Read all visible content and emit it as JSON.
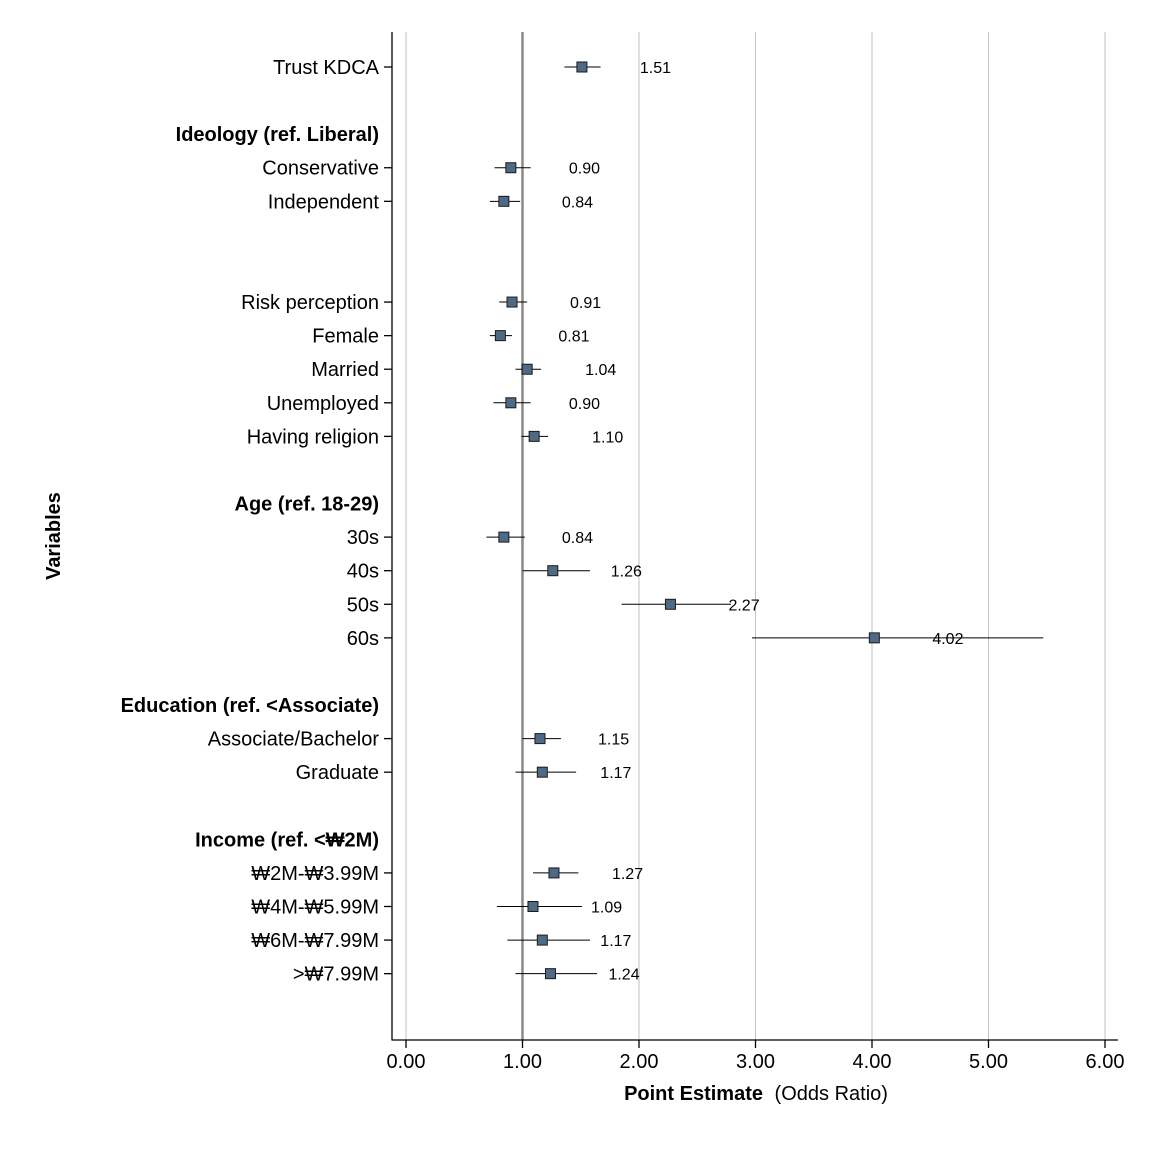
{
  "chart_data": {
    "type": "forest",
    "xlabel_bold": "Point Estimate",
    "xlabel_rest": "(Odds Ratio)",
    "ylabel": "Variables",
    "xlim": [
      0,
      6
    ],
    "xticks": [
      "0.00",
      "1.00",
      "2.00",
      "3.00",
      "4.00",
      "5.00",
      "6.00"
    ],
    "xtick_values": [
      0,
      1,
      2,
      3,
      4,
      5,
      6
    ],
    "reference_line": 1,
    "grid": "vertical",
    "marker_color": "#4f6a85",
    "rows": [
      {
        "kind": "item",
        "label": "Trust KDCA",
        "estimate": 1.51,
        "lower": 1.36,
        "upper": 1.67,
        "value_label": "1.51"
      },
      {
        "kind": "blank"
      },
      {
        "kind": "group",
        "label": "Ideology (ref. Liberal)"
      },
      {
        "kind": "item",
        "label": "Conservative",
        "estimate": 0.9,
        "lower": 0.76,
        "upper": 1.07,
        "value_label": "0.90"
      },
      {
        "kind": "item",
        "label": "Independent",
        "estimate": 0.84,
        "lower": 0.72,
        "upper": 0.98,
        "value_label": "0.84"
      },
      {
        "kind": "blank"
      },
      {
        "kind": "blank"
      },
      {
        "kind": "item",
        "label": "Risk perception",
        "estimate": 0.91,
        "lower": 0.8,
        "upper": 1.04,
        "value_label": "0.91"
      },
      {
        "kind": "item",
        "label": "Female",
        "estimate": 0.81,
        "lower": 0.72,
        "upper": 0.91,
        "value_label": "0.81"
      },
      {
        "kind": "item",
        "label": "Married",
        "estimate": 1.04,
        "lower": 0.94,
        "upper": 1.16,
        "value_label": "1.04"
      },
      {
        "kind": "item",
        "label": "Unemployed",
        "estimate": 0.9,
        "lower": 0.75,
        "upper": 1.07,
        "value_label": "0.90"
      },
      {
        "kind": "item",
        "label": "Having religion",
        "estimate": 1.1,
        "lower": 0.99,
        "upper": 1.22,
        "value_label": "1.10"
      },
      {
        "kind": "blank"
      },
      {
        "kind": "group",
        "label": "Age (ref. 18-29)"
      },
      {
        "kind": "item",
        "label": "30s",
        "estimate": 0.84,
        "lower": 0.69,
        "upper": 1.02,
        "value_label": "0.84"
      },
      {
        "kind": "item",
        "label": "40s",
        "estimate": 1.26,
        "lower": 1.0,
        "upper": 1.58,
        "value_label": "1.26"
      },
      {
        "kind": "item",
        "label": "50s",
        "estimate": 2.27,
        "lower": 1.85,
        "upper": 2.79,
        "value_label": "2.27"
      },
      {
        "kind": "item",
        "label": "60s",
        "estimate": 4.02,
        "lower": 2.97,
        "upper": 5.47,
        "value_label": "4.02"
      },
      {
        "kind": "blank"
      },
      {
        "kind": "group",
        "label": "Education (ref. <Associate)"
      },
      {
        "kind": "item",
        "label": "Associate/Bachelor",
        "estimate": 1.15,
        "lower": 1.0,
        "upper": 1.33,
        "value_label": "1.15"
      },
      {
        "kind": "item",
        "label": "Graduate",
        "estimate": 1.17,
        "lower": 0.94,
        "upper": 1.46,
        "value_label": "1.17"
      },
      {
        "kind": "blank"
      },
      {
        "kind": "group",
        "label": "Income (ref. <₩2M)"
      },
      {
        "kind": "item",
        "label": "₩2M-₩3.99M",
        "estimate": 1.27,
        "lower": 1.09,
        "upper": 1.48,
        "value_label": "1.27"
      },
      {
        "kind": "item",
        "label": "₩4M-₩5.99M",
        "estimate": 1.09,
        "lower": 0.78,
        "upper": 1.51,
        "value_label": "1.09"
      },
      {
        "kind": "item",
        "label": "₩6M-₩7.99M",
        "estimate": 1.17,
        "lower": 0.87,
        "upper": 1.58,
        "value_label": "1.17"
      },
      {
        "kind": "item",
        "label": ">₩7.99M",
        "estimate": 1.24,
        "lower": 0.94,
        "upper": 1.64,
        "value_label": "1.24"
      }
    ]
  }
}
